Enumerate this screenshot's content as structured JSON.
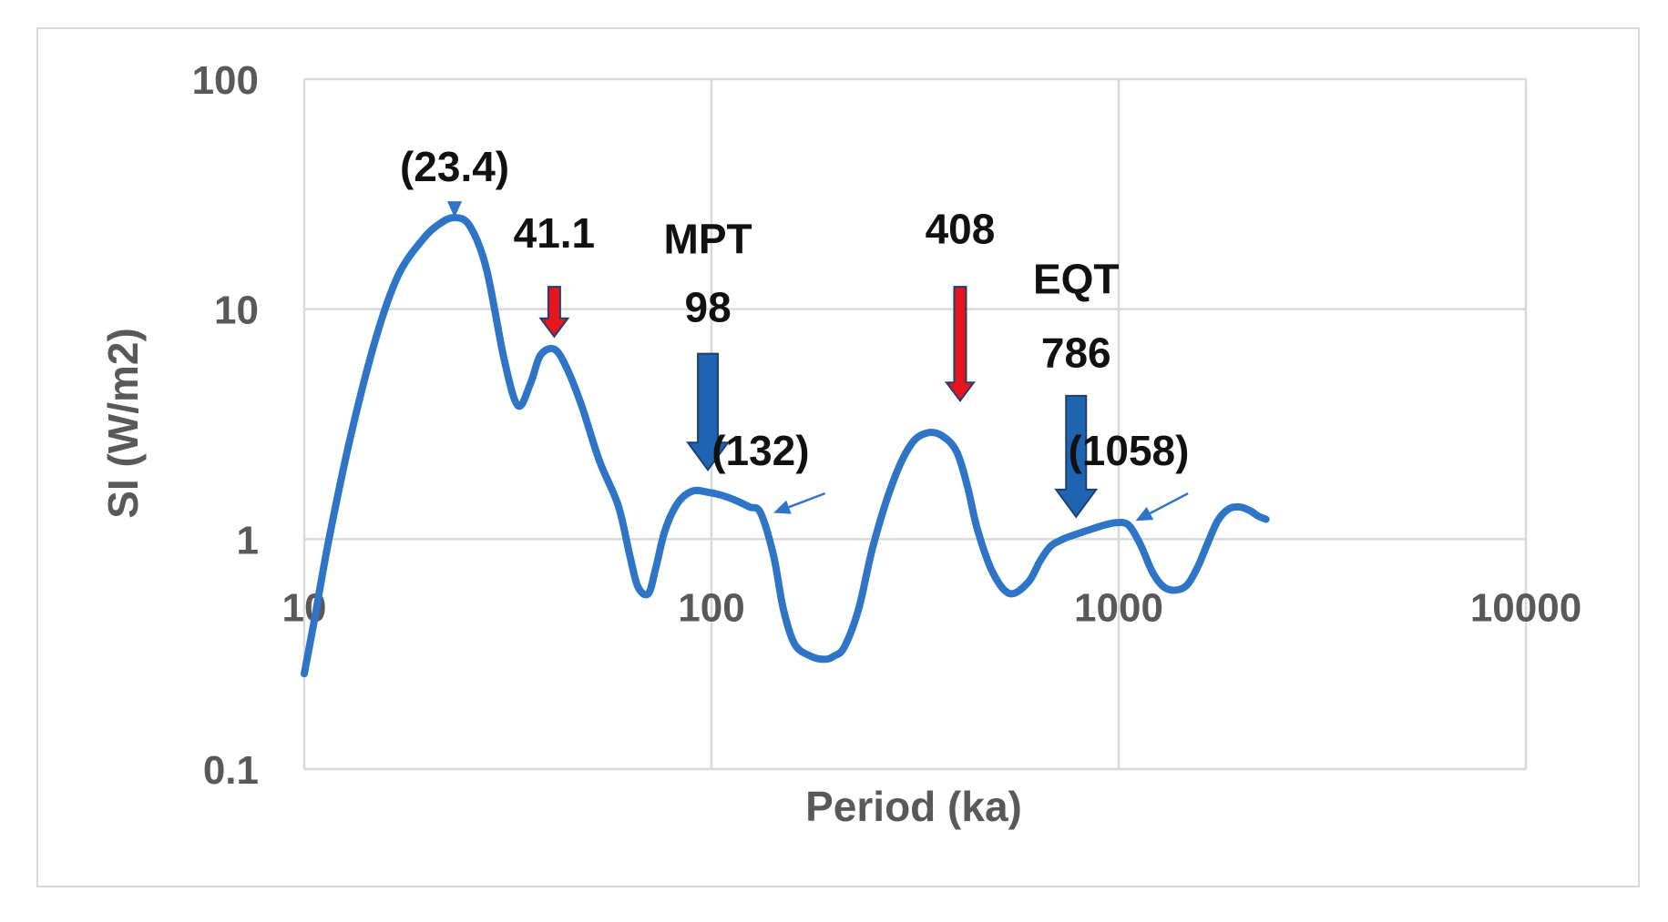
{
  "chart_data": {
    "type": "line",
    "xlabel": "Period (ka)",
    "ylabel": "SI (W/m2)",
    "xscale": "log",
    "yscale": "log",
    "xlim": [
      10,
      10000
    ],
    "ylim": [
      0.1,
      100
    ],
    "grid": true,
    "x_ticks": [
      "10",
      "100",
      "1000",
      "10000"
    ],
    "y_ticks": [
      "0.1",
      "1",
      "10",
      "100"
    ],
    "line_color": "#2E75C8",
    "series": [
      {
        "x": [
          10,
          10.6,
          11.5,
          13,
          15,
          17,
          19.5,
          21.5,
          23.4,
          25.5,
          28,
          31,
          33.5,
          36,
          38,
          41.1,
          44,
          48,
          53,
          59,
          63,
          66,
          70,
          73,
          77,
          83,
          90,
          98,
          106,
          114,
          124,
          132,
          142,
          150,
          160,
          175,
          190,
          200,
          212,
          230,
          250,
          280,
          310,
          340,
          370,
          400,
          425,
          450,
          490,
          540,
          600,
          640,
          680,
          730,
          786,
          850,
          920,
          990,
          1058,
          1130,
          1210,
          1290,
          1380,
          1470,
          1560,
          1650,
          1750,
          1860,
          1980,
          2100,
          2200,
          2300
        ],
        "y": [
          0.26,
          0.45,
          1.0,
          2.8,
          7.5,
          14.0,
          20.0,
          23.5,
          25.0,
          23.0,
          15.0,
          6.0,
          3.8,
          4.8,
          6.3,
          6.7,
          5.6,
          3.8,
          2.2,
          1.4,
          0.85,
          0.62,
          0.58,
          0.75,
          1.1,
          1.45,
          1.62,
          1.6,
          1.55,
          1.48,
          1.38,
          1.3,
          0.85,
          0.5,
          0.35,
          0.31,
          0.3,
          0.31,
          0.34,
          0.5,
          0.95,
          1.8,
          2.6,
          2.9,
          2.8,
          2.4,
          1.7,
          1.1,
          0.72,
          0.58,
          0.65,
          0.8,
          0.93,
          1.0,
          1.05,
          1.1,
          1.15,
          1.18,
          1.15,
          0.95,
          0.72,
          0.62,
          0.6,
          0.63,
          0.75,
          0.95,
          1.2,
          1.35,
          1.38,
          1.33,
          1.26,
          1.22
        ]
      }
    ],
    "annotations": [
      {
        "label": "(23.4)",
        "arrow": "thin-blue",
        "x": 23.4,
        "text_y": 36,
        "arrow_y1": 28,
        "arrow_y2": 25
      },
      {
        "label": "41.1",
        "arrow": "red",
        "x": 41.1,
        "text_y": 18.5,
        "arrow_y1": 12.5,
        "arrow_y2": 7.6
      },
      {
        "label": "MPT",
        "arrow": "none",
        "x": 98,
        "text_y": 17.5
      },
      {
        "label": "98",
        "arrow": "blue",
        "x": 98,
        "text_y": 8.8,
        "arrow_y1": 6.4,
        "arrow_y2": 2.0
      },
      {
        "label": "(132)",
        "arrow": "thin-blue",
        "x": 132,
        "text_y": 2.1,
        "arrow_x1": 190,
        "arrow_y1": 1.58,
        "arrow_x2": 142,
        "arrow_y2": 1.3
      },
      {
        "label": "408",
        "arrow": "red",
        "x": 408,
        "text_y": 19.3,
        "arrow_y1": 12.5,
        "arrow_y2": 4.0
      },
      {
        "label": "EQT",
        "arrow": "none",
        "x": 786,
        "text_y": 11.7
      },
      {
        "label": "786",
        "arrow": "blue",
        "x": 786,
        "text_y": 5.6,
        "arrow_y1": 4.2,
        "arrow_y2": 1.25
      },
      {
        "label": "(1058)",
        "arrow": "thin-blue",
        "x": 1058,
        "text_y": 2.1,
        "arrow_x1": 1480,
        "arrow_y1": 1.58,
        "arrow_x2": 1100,
        "arrow_y2": 1.2
      }
    ]
  }
}
